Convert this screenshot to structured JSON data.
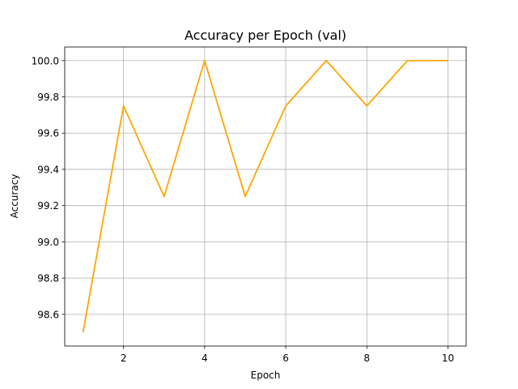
{
  "chart_data": {
    "type": "line",
    "title": "Accuracy per Epoch (val)",
    "xlabel": "Epoch",
    "ylabel": "Accuracy",
    "x": [
      1,
      2,
      3,
      4,
      5,
      6,
      7,
      8,
      9,
      10
    ],
    "series": [
      {
        "values": [
          98.5,
          99.75,
          99.25,
          100.0,
          99.25,
          99.75,
          100.0,
          99.75,
          100.0,
          100.0
        ],
        "color": "#ffa500"
      }
    ],
    "xlim": [
      0.55,
      10.45
    ],
    "ylim": [
      98.425,
      100.075
    ],
    "xticks": [
      2,
      4,
      6,
      8,
      10
    ],
    "xtick_labels": [
      "2",
      "4",
      "6",
      "8",
      "10"
    ],
    "yticks": [
      98.6,
      98.8,
      99.0,
      99.2,
      99.4,
      99.6,
      99.8,
      100.0
    ],
    "ytick_labels": [
      "98.6",
      "98.8",
      "99.0",
      "99.2",
      "99.4",
      "99.6",
      "99.8",
      "100.0"
    ],
    "grid": true,
    "legend": false
  }
}
